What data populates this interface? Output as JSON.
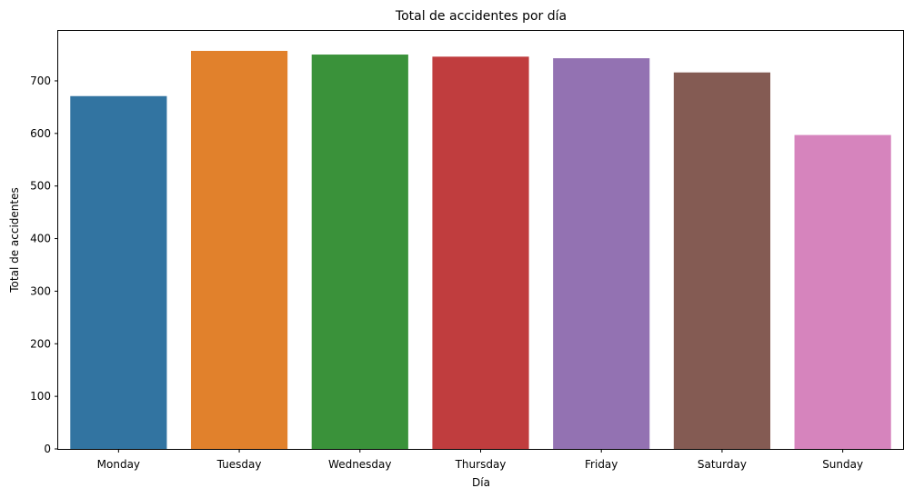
{
  "chart_data": {
    "type": "bar",
    "title": "Total de accidentes por día",
    "xlabel": "Día",
    "ylabel": "Total de accidentes",
    "categories": [
      "Monday",
      "Tuesday",
      "Wednesday",
      "Thursday",
      "Friday",
      "Saturday",
      "Sunday"
    ],
    "values": [
      671,
      757,
      750,
      746,
      743,
      716,
      597
    ],
    "colors": [
      "#3274a1",
      "#e1812c",
      "#3a923a",
      "#c03d3e",
      "#9372b2",
      "#845b53",
      "#d684bd"
    ],
    "ylim": [
      0,
      795
    ],
    "yticks": [
      0,
      100,
      200,
      300,
      400,
      500,
      600,
      700
    ],
    "grid": false,
    "legend": "none"
  }
}
